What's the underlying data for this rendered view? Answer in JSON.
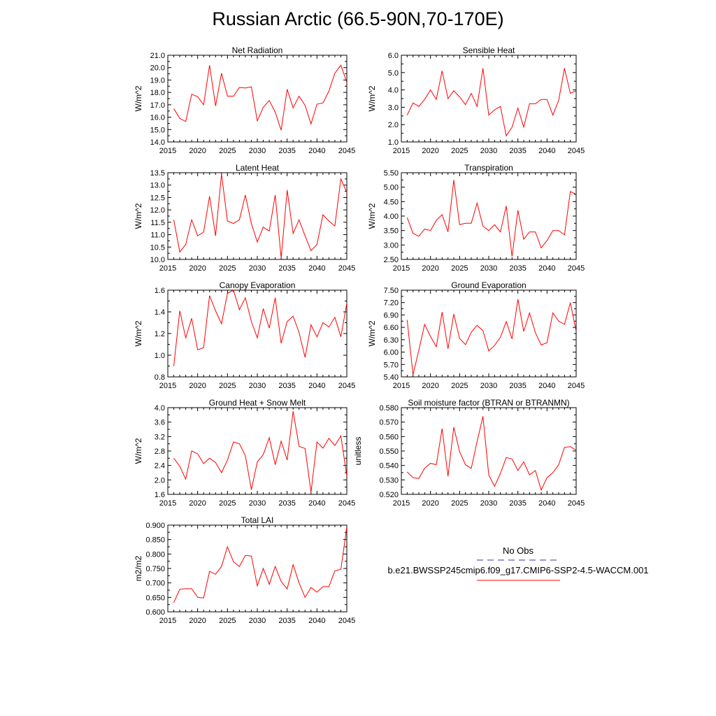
{
  "page_title": "Russian Arctic (66.5-90N,70-170E)",
  "legend": {
    "obs_label": "No Obs",
    "case_label": "b.e21.BWSSP245cmip6.f09_g17.CMIP6-SSP2-4.5-WACCM.001",
    "obs_color": "#3333aa",
    "case_color": "#ff0000"
  },
  "chart_data": [
    {
      "type": "line",
      "title": "Net Radiation",
      "ylabel": "W/m^2",
      "xlim": [
        2015,
        2045
      ],
      "ylim": [
        14.0,
        21.0
      ],
      "xticks": [
        2015,
        2020,
        2025,
        2030,
        2035,
        2040,
        2045
      ],
      "yticks": [
        "14.0",
        "15.0",
        "16.0",
        "17.0",
        "18.0",
        "19.0",
        "20.0",
        "21.0"
      ],
      "x": [
        2016,
        2017,
        2018,
        2019,
        2020,
        2021,
        2022,
        2023,
        2024,
        2025,
        2026,
        2027,
        2028,
        2029,
        2030,
        2031,
        2032,
        2033,
        2034,
        2035,
        2036,
        2037,
        2038,
        2039,
        2040,
        2041,
        2042,
        2043,
        2044,
        2045
      ],
      "series": [
        {
          "values": [
            16.7,
            15.9,
            15.65,
            17.85,
            17.65,
            17.0,
            20.2,
            16.9,
            19.55,
            17.7,
            17.7,
            18.4,
            18.35,
            18.45,
            15.7,
            16.8,
            17.35,
            16.4,
            14.95,
            18.25,
            16.75,
            17.7,
            16.95,
            15.45,
            17.05,
            17.15,
            18.1,
            19.55,
            20.2,
            18.8
          ]
        }
      ]
    },
    {
      "type": "line",
      "title": "Sensible Heat",
      "ylabel": "W/m^2",
      "xlim": [
        2015,
        2045
      ],
      "ylim": [
        1.0,
        6.0
      ],
      "xticks": [
        2015,
        2020,
        2025,
        2030,
        2035,
        2040,
        2045
      ],
      "yticks": [
        "1.0",
        "2.0",
        "3.0",
        "4.0",
        "5.0",
        "6.0"
      ],
      "x": [
        2016,
        2017,
        2018,
        2019,
        2020,
        2021,
        2022,
        2023,
        2024,
        2025,
        2026,
        2027,
        2028,
        2029,
        2030,
        2031,
        2032,
        2033,
        2034,
        2035,
        2036,
        2037,
        2038,
        2039,
        2040,
        2041,
        2042,
        2043,
        2044,
        2045
      ],
      "series": [
        {
          "values": [
            2.55,
            3.25,
            3.05,
            3.45,
            4.0,
            3.45,
            5.1,
            3.5,
            3.95,
            3.6,
            3.15,
            3.8,
            3.05,
            5.25,
            2.55,
            2.85,
            3.05,
            1.35,
            1.85,
            2.95,
            1.85,
            3.2,
            3.2,
            3.45,
            3.45,
            2.55,
            3.4,
            5.25,
            3.8,
            3.95
          ]
        }
      ]
    },
    {
      "type": "line",
      "title": "Latent Heat",
      "ylabel": "W/m^2",
      "xlim": [
        2015,
        2045
      ],
      "ylim": [
        10.0,
        13.5
      ],
      "xticks": [
        2015,
        2020,
        2025,
        2030,
        2035,
        2040,
        2045
      ],
      "yticks": [
        "10.0",
        "10.5",
        "11.0",
        "11.5",
        "12.0",
        "12.5",
        "13.0",
        "13.5"
      ],
      "x": [
        2016,
        2017,
        2018,
        2019,
        2020,
        2021,
        2022,
        2023,
        2024,
        2025,
        2026,
        2027,
        2028,
        2029,
        2030,
        2031,
        2032,
        2033,
        2034,
        2035,
        2036,
        2037,
        2038,
        2039,
        2040,
        2041,
        2042,
        2043,
        2044,
        2045
      ],
      "series": [
        {
          "values": [
            11.6,
            10.3,
            10.6,
            11.6,
            10.95,
            11.1,
            12.55,
            10.95,
            13.45,
            11.55,
            11.45,
            11.6,
            12.6,
            11.45,
            10.7,
            11.3,
            11.15,
            12.6,
            10.05,
            12.8,
            11.05,
            11.6,
            10.95,
            10.35,
            10.6,
            11.8,
            11.55,
            11.35,
            13.25,
            12.7
          ]
        }
      ]
    },
    {
      "type": "line",
      "title": "Transpiration",
      "ylabel": "W/m^2",
      "xlim": [
        2015,
        2045
      ],
      "ylim": [
        2.5,
        5.5
      ],
      "xticks": [
        2015,
        2020,
        2025,
        2030,
        2035,
        2040,
        2045
      ],
      "yticks": [
        "2.50",
        "3.00",
        "3.50",
        "4.00",
        "4.50",
        "5.00",
        "5.50"
      ],
      "x": [
        2016,
        2017,
        2018,
        2019,
        2020,
        2021,
        2022,
        2023,
        2024,
        2025,
        2026,
        2027,
        2028,
        2029,
        2030,
        2031,
        2032,
        2033,
        2034,
        2035,
        2036,
        2037,
        2038,
        2039,
        2040,
        2041,
        2042,
        2043,
        2044,
        2045
      ],
      "series": [
        {
          "values": [
            3.95,
            3.4,
            3.3,
            3.55,
            3.5,
            3.85,
            4.05,
            3.45,
            5.25,
            3.7,
            3.75,
            3.75,
            4.45,
            3.65,
            3.5,
            3.7,
            3.45,
            4.35,
            2.6,
            4.2,
            3.2,
            3.45,
            3.45,
            2.9,
            3.15,
            3.5,
            3.5,
            3.35,
            4.85,
            4.75
          ]
        }
      ]
    },
    {
      "type": "line",
      "title": "Canopy Evaporation",
      "ylabel": "W/m^2",
      "xlim": [
        2015,
        2045
      ],
      "ylim": [
        0.8,
        1.6
      ],
      "xticks": [
        2015,
        2020,
        2025,
        2030,
        2035,
        2040,
        2045
      ],
      "yticks": [
        "0.8",
        "1.0",
        "1.2",
        "1.4",
        "1.6"
      ],
      "x": [
        2016,
        2017,
        2018,
        2019,
        2020,
        2021,
        2022,
        2023,
        2024,
        2025,
        2026,
        2027,
        2028,
        2029,
        2030,
        2031,
        2032,
        2033,
        2034,
        2035,
        2036,
        2037,
        2038,
        2039,
        2040,
        2041,
        2042,
        2043,
        2044,
        2045
      ],
      "series": [
        {
          "values": [
            0.9,
            1.41,
            1.16,
            1.34,
            1.05,
            1.07,
            1.55,
            1.41,
            1.29,
            1.57,
            1.6,
            1.42,
            1.53,
            1.31,
            1.16,
            1.43,
            1.25,
            1.53,
            1.11,
            1.31,
            1.36,
            1.21,
            0.98,
            1.28,
            1.17,
            1.3,
            1.26,
            1.35,
            1.17,
            1.48
          ]
        }
      ]
    },
    {
      "type": "line",
      "title": "Ground Evaporation",
      "ylabel": "W/m^2",
      "xlim": [
        2015,
        2045
      ],
      "ylim": [
        5.4,
        7.5
      ],
      "xticks": [
        2015,
        2020,
        2025,
        2030,
        2035,
        2040,
        2045
      ],
      "yticks": [
        "5.40",
        "5.70",
        "6.00",
        "6.30",
        "6.60",
        "6.90",
        "7.20",
        "7.50"
      ],
      "x": [
        2016,
        2017,
        2018,
        2019,
        2020,
        2021,
        2022,
        2023,
        2024,
        2025,
        2026,
        2027,
        2028,
        2029,
        2030,
        2031,
        2032,
        2033,
        2034,
        2035,
        2036,
        2037,
        2038,
        2039,
        2040,
        2041,
        2042,
        2043,
        2044,
        2045
      ],
      "series": [
        {
          "values": [
            6.78,
            5.45,
            6.05,
            6.67,
            6.38,
            6.13,
            6.97,
            6.08,
            6.92,
            6.33,
            6.18,
            6.48,
            6.65,
            6.52,
            6.03,
            6.16,
            6.36,
            6.74,
            6.32,
            7.28,
            6.5,
            6.95,
            6.47,
            6.17,
            6.23,
            6.95,
            6.75,
            6.67,
            7.2,
            6.5
          ]
        }
      ]
    },
    {
      "type": "line",
      "title": "Ground Heat + Snow Melt",
      "ylabel": "W/m^2",
      "xlim": [
        2015,
        2045
      ],
      "ylim": [
        1.6,
        4.0
      ],
      "xticks": [
        2015,
        2020,
        2025,
        2030,
        2035,
        2040,
        2045
      ],
      "yticks": [
        "1.6",
        "2.0",
        "2.4",
        "2.8",
        "3.2",
        "3.6",
        "4.0"
      ],
      "x": [
        2016,
        2017,
        2018,
        2019,
        2020,
        2021,
        2022,
        2023,
        2024,
        2025,
        2026,
        2027,
        2028,
        2029,
        2030,
        2031,
        2032,
        2033,
        2034,
        2035,
        2036,
        2037,
        2038,
        2039,
        2040,
        2041,
        2042,
        2043,
        2044,
        2045
      ],
      "series": [
        {
          "values": [
            2.6,
            2.38,
            2.02,
            2.8,
            2.72,
            2.45,
            2.6,
            2.48,
            2.2,
            2.55,
            3.05,
            3.0,
            2.67,
            1.73,
            2.5,
            2.7,
            3.17,
            2.42,
            3.07,
            2.55,
            3.9,
            2.93,
            2.87,
            1.66,
            3.05,
            2.88,
            3.15,
            2.95,
            3.22,
            2.1
          ]
        }
      ]
    },
    {
      "type": "line",
      "title": "Soil moisture factor (BTRAN or BTRANMN)",
      "ylabel": "unitless",
      "xlim": [
        2015,
        2045
      ],
      "ylim": [
        0.52,
        0.58
      ],
      "xticks": [
        2015,
        2020,
        2025,
        2030,
        2035,
        2040,
        2045
      ],
      "yticks": [
        "0.520",
        "0.530",
        "0.540",
        "0.550",
        "0.560",
        "0.570",
        "0.580"
      ],
      "x": [
        2016,
        2017,
        2018,
        2019,
        2020,
        2021,
        2022,
        2023,
        2024,
        2025,
        2026,
        2027,
        2028,
        2029,
        2030,
        2031,
        2032,
        2033,
        2034,
        2035,
        2036,
        2037,
        2038,
        2039,
        2040,
        2041,
        2042,
        2043,
        2044,
        2045
      ],
      "series": [
        {
          "values": [
            0.5355,
            0.5315,
            0.531,
            0.538,
            0.5415,
            0.5405,
            0.5655,
            0.5325,
            0.5665,
            0.5495,
            0.5405,
            0.538,
            0.5565,
            0.574,
            0.5335,
            0.5255,
            0.5345,
            0.5455,
            0.5445,
            0.5365,
            0.5425,
            0.5335,
            0.5365,
            0.523,
            0.5315,
            0.535,
            0.5405,
            0.5525,
            0.553,
            0.5505
          ]
        }
      ]
    },
    {
      "type": "line",
      "title": "Total LAI",
      "ylabel": "m2/m2",
      "xlim": [
        2015,
        2045
      ],
      "ylim": [
        0.6,
        0.9
      ],
      "xticks": [
        2015,
        2020,
        2025,
        2030,
        2035,
        2040,
        2045
      ],
      "yticks": [
        "0.600",
        "0.650",
        "0.700",
        "0.750",
        "0.800",
        "0.850",
        "0.900"
      ],
      "x": [
        2016,
        2017,
        2018,
        2019,
        2020,
        2021,
        2022,
        2023,
        2024,
        2025,
        2026,
        2027,
        2028,
        2029,
        2030,
        2031,
        2032,
        2033,
        2034,
        2035,
        2036,
        2037,
        2038,
        2039,
        2040,
        2041,
        2042,
        2043,
        2044,
        2045
      ],
      "series": [
        {
          "values": [
            0.632,
            0.678,
            0.68,
            0.68,
            0.65,
            0.648,
            0.74,
            0.73,
            0.757,
            0.825,
            0.773,
            0.757,
            0.795,
            0.793,
            0.69,
            0.75,
            0.695,
            0.757,
            0.705,
            0.679,
            0.763,
            0.7,
            0.65,
            0.684,
            0.668,
            0.687,
            0.687,
            0.742,
            0.747,
            0.893
          ]
        }
      ]
    }
  ]
}
